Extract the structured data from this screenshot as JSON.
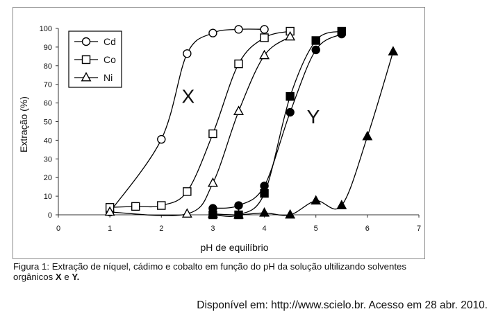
{
  "chart_data": {
    "type": "line",
    "xlabel": "pH de equilíbrio",
    "ylabel": "Extração (%)",
    "xlim": [
      0,
      7
    ],
    "ylim": [
      0,
      100
    ],
    "x_ticks": [
      "0",
      "1",
      "2",
      "3",
      "4",
      "5",
      "6",
      "7"
    ],
    "y_ticks": [
      "0",
      "10",
      "20",
      "30",
      "40",
      "50",
      "60",
      "70",
      "80",
      "90",
      "100"
    ],
    "grid": false,
    "legend_position": "top-left",
    "annotations": [
      {
        "text": "X",
        "x": 2.52,
        "y": 60
      },
      {
        "text": "Y",
        "x": 4.95,
        "y": 49
      }
    ],
    "legend": [
      {
        "label": "Cd",
        "marker": "circle"
      },
      {
        "label": "Co",
        "marker": "square"
      },
      {
        "label": "Ni",
        "marker": "triangle"
      }
    ],
    "series": [
      {
        "name": "Cd",
        "solvent": "X",
        "marker": "circle",
        "filled": false,
        "x": [
          1.0,
          2.0,
          2.5,
          3.0,
          3.5,
          4.0
        ],
        "y": [
          1.5,
          40.5,
          86.5,
          97.5,
          99.5,
          99.5
        ]
      },
      {
        "name": "Co",
        "solvent": "X",
        "marker": "square",
        "filled": false,
        "x": [
          1.0,
          1.5,
          2.0,
          2.5,
          3.0,
          3.5,
          4.0,
          4.5
        ],
        "y": [
          4.0,
          4.5,
          5.0,
          12.5,
          43.5,
          81.0,
          95.0,
          98.5
        ]
      },
      {
        "name": "Ni",
        "solvent": "X",
        "marker": "triangle",
        "filled": false,
        "x": [
          1.0,
          2.5,
          3.0,
          3.5,
          4.0,
          4.5
        ],
        "y": [
          1.5,
          0.5,
          17.0,
          55.5,
          85.5,
          95.5
        ]
      },
      {
        "name": "Cd",
        "solvent": "Y",
        "marker": "circle",
        "filled": true,
        "x": [
          3.0,
          3.5,
          4.0,
          4.5,
          5.0,
          5.5
        ],
        "y": [
          3.5,
          5.0,
          15.5,
          55.0,
          88.5,
          97.0
        ]
      },
      {
        "name": "Co",
        "solvent": "Y",
        "marker": "square",
        "filled": true,
        "x": [
          3.0,
          3.5,
          4.0,
          4.5,
          5.0,
          5.5
        ],
        "y": [
          0.0,
          0.0,
          11.5,
          63.5,
          93.5,
          98.5
        ]
      },
      {
        "name": "Ni",
        "solvent": "Y",
        "marker": "triangle",
        "filled": true,
        "x": [
          3.0,
          3.5,
          4.0,
          4.5,
          5.0,
          5.5,
          6.0,
          6.5
        ],
        "y": [
          0.5,
          0.0,
          1.0,
          0.0,
          7.5,
          5.0,
          42.0,
          87.5
        ]
      }
    ]
  },
  "caption": {
    "prefix": "Figura 1: Extração de níquel, cádimo e cobalto em função do pH da solução ultilizando solventes orgânicos ",
    "x_label": "X",
    "middle": " e ",
    "y_label": "Y."
  },
  "source": "Disponível em: http://www.scielo.br. Acesso em 28 abr. 2010."
}
